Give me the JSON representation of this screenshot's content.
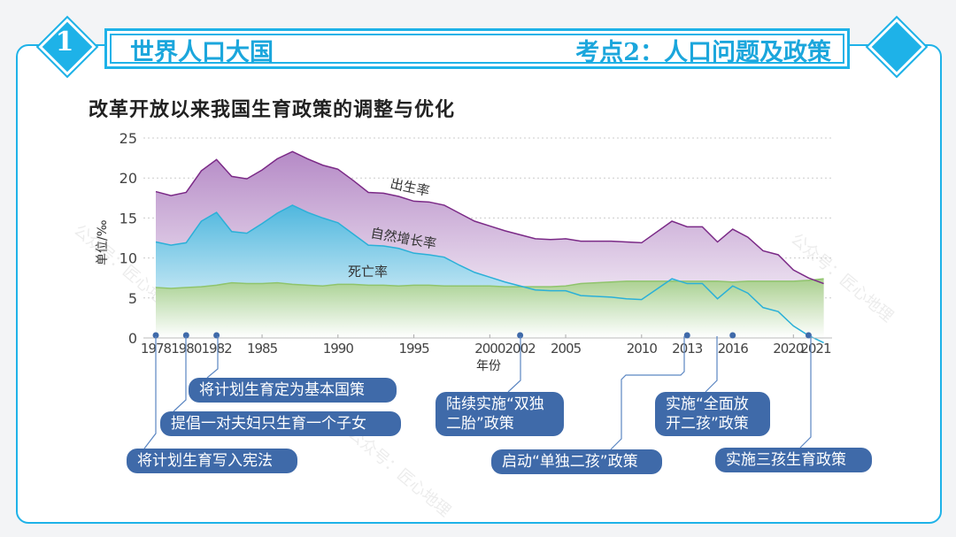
{
  "header": {
    "number": "1",
    "left_title": "世界人口大国",
    "right_title": "考点2：人口问题及政策"
  },
  "watermark": "公众号：匠心地理",
  "colors": {
    "accent": "#1eb2e8",
    "bubble": "#3f6aa9",
    "birth": "#7b2a87",
    "natural": "#2ab0d8",
    "death": "#8fc46c"
  },
  "chart_data": {
    "type": "area",
    "title": "改革开放以来我国生育政策的调整与优化",
    "xlabel": "年份",
    "ylabel": "单位/‰",
    "ylim": [
      0,
      25
    ],
    "yticks": [
      0,
      5,
      10,
      15,
      20,
      25
    ],
    "xticks": [
      1978,
      1980,
      1982,
      1985,
      1990,
      1995,
      2000,
      2002,
      2005,
      2010,
      2013,
      2016,
      2020,
      2021
    ],
    "grid": true,
    "x": [
      1978,
      1979,
      1980,
      1981,
      1982,
      1983,
      1984,
      1985,
      1986,
      1987,
      1988,
      1989,
      1990,
      1991,
      1992,
      1993,
      1994,
      1995,
      1996,
      1997,
      1998,
      1999,
      2000,
      2001,
      2002,
      2003,
      2004,
      2005,
      2006,
      2007,
      2008,
      2009,
      2010,
      2012,
      2013,
      2014,
      2015,
      2016,
      2017,
      2018,
      2019,
      2020,
      2021,
      2022
    ],
    "series": [
      {
        "name": "出生率",
        "values": [
          18.3,
          17.8,
          18.2,
          20.9,
          22.3,
          20.2,
          19.9,
          21.0,
          22.4,
          23.3,
          22.4,
          21.6,
          21.1,
          19.7,
          18.2,
          18.1,
          17.7,
          17.1,
          17.0,
          16.6,
          15.6,
          14.6,
          14.0,
          13.4,
          12.9,
          12.4,
          12.3,
          12.4,
          12.1,
          12.1,
          12.1,
          12.0,
          11.9,
          14.6,
          13.9,
          13.9,
          12.0,
          13.6,
          12.6,
          10.9,
          10.4,
          8.5,
          7.5,
          6.8
        ]
      },
      {
        "name": "自然增长率",
        "values": [
          12.0,
          11.6,
          11.9,
          14.6,
          15.7,
          13.3,
          13.1,
          14.3,
          15.6,
          16.6,
          15.7,
          15.0,
          14.4,
          13.0,
          11.6,
          11.5,
          11.2,
          10.6,
          10.4,
          10.1,
          9.1,
          8.2,
          7.6,
          7.0,
          6.5,
          6.0,
          5.9,
          5.9,
          5.3,
          5.2,
          5.1,
          4.9,
          4.8,
          7.4,
          6.8,
          6.8,
          4.9,
          6.5,
          5.6,
          3.8,
          3.3,
          1.5,
          0.3,
          -0.6
        ]
      },
      {
        "name": "死亡率",
        "values": [
          6.3,
          6.2,
          6.3,
          6.4,
          6.6,
          6.9,
          6.8,
          6.8,
          6.9,
          6.7,
          6.6,
          6.5,
          6.7,
          6.7,
          6.6,
          6.6,
          6.5,
          6.6,
          6.6,
          6.5,
          6.5,
          6.5,
          6.5,
          6.4,
          6.4,
          6.4,
          6.4,
          6.5,
          6.8,
          6.9,
          7.0,
          7.1,
          7.1,
          7.1,
          7.1,
          7.1,
          7.1,
          7.0,
          7.1,
          7.1,
          7.1,
          7.1,
          7.2,
          7.4
        ]
      }
    ],
    "policy_years": [
      1978,
      1980,
      1982,
      2002,
      2013,
      2016,
      2021
    ],
    "annotations": [
      "将计划生育写入宪法",
      "提倡一对夫妇只生育一个子女",
      "将计划生育定为基本国策",
      "陆续实施“双独二胎”政策",
      "启动“单独二孩”政策",
      "实施“全面放开二孩”政策",
      "实施三孩生育政策"
    ]
  }
}
